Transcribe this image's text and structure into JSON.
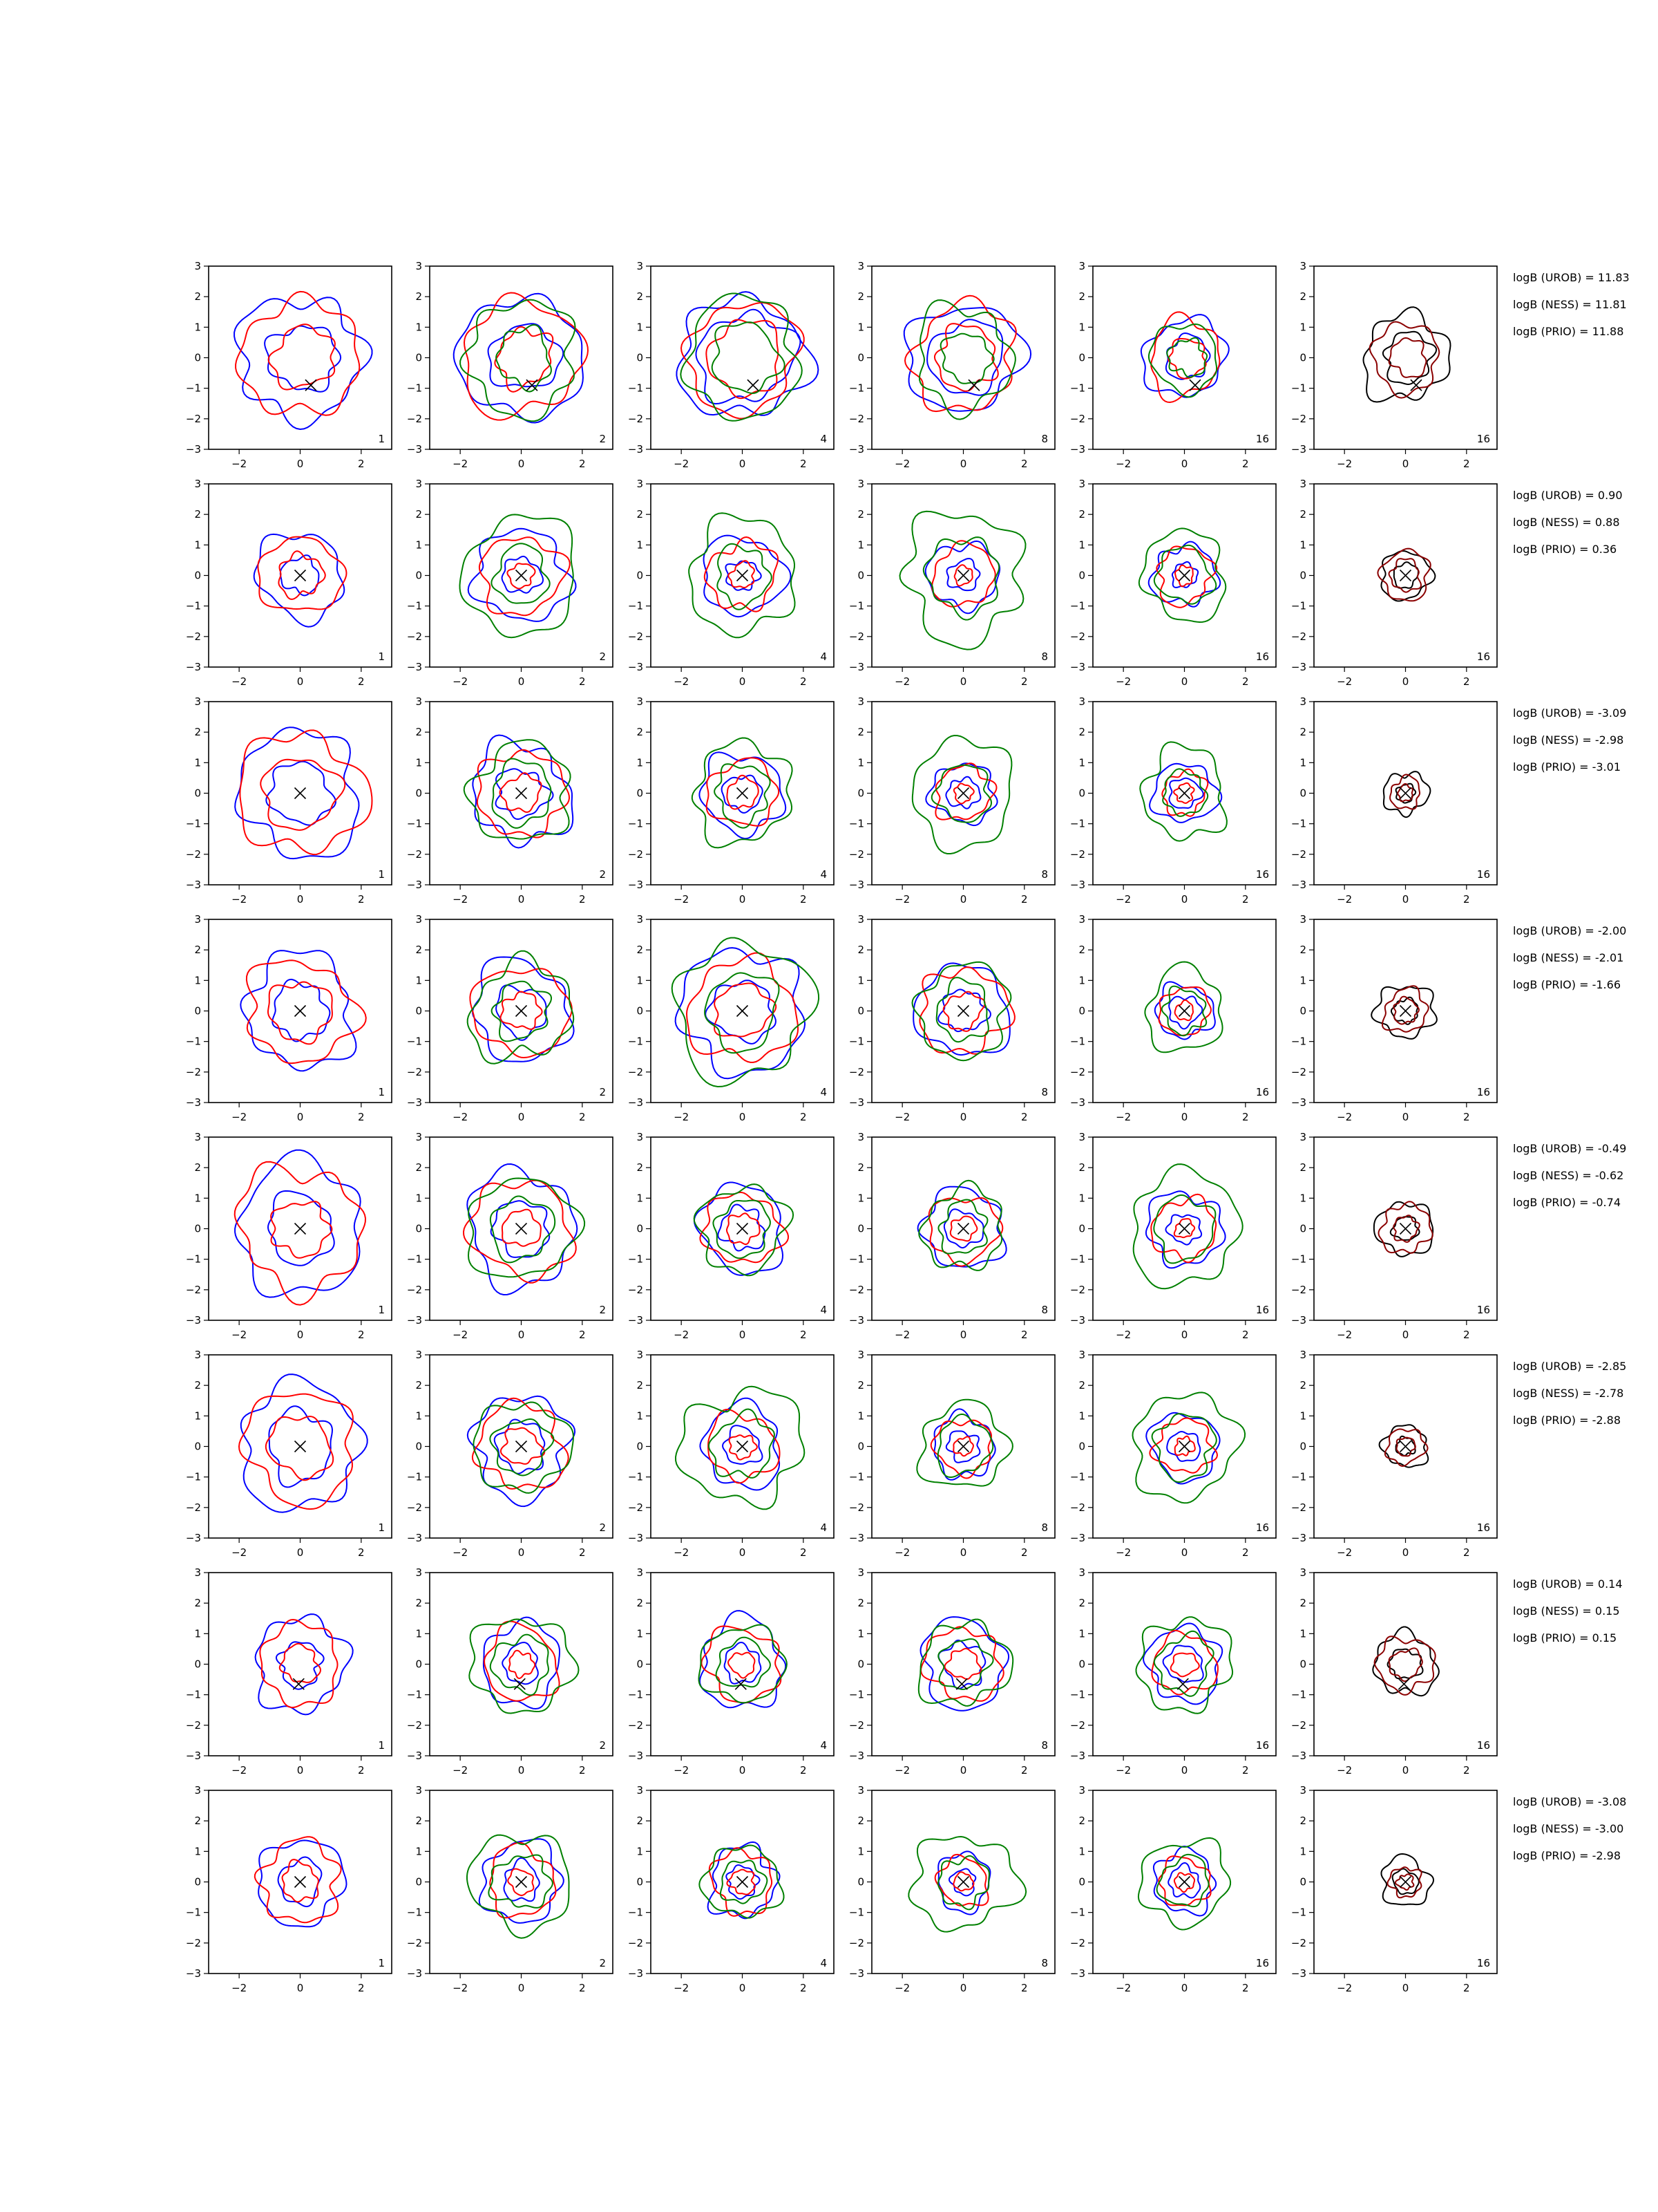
{
  "chart_data": {
    "type": "contour-grid",
    "rows": 8,
    "cols": 6,
    "xlim": [
      -3,
      3
    ],
    "ylim": [
      -3,
      3
    ],
    "xticks": [
      "−2",
      "0",
      "2"
    ],
    "yticks": [
      "3",
      "2",
      "1",
      "0",
      "−1",
      "−2",
      "−3"
    ],
    "tick_values_x": [
      -2,
      0,
      2
    ],
    "tick_values_y": [
      3,
      2,
      1,
      0,
      -1,
      -2,
      -3
    ],
    "column_labels": [
      "1",
      "2",
      "4",
      "8",
      "16",
      "16"
    ],
    "colors": {
      "blue": "#0000ff",
      "red": "#ff0000",
      "green": "#008000",
      "black": "#000000",
      "darkred": "#8b0000"
    },
    "marker_positions": [
      [
        0.35,
        -0.9
      ],
      [
        0,
        0
      ],
      [
        0,
        0
      ],
      [
        0,
        0
      ],
      [
        0,
        0
      ],
      [
        0,
        0
      ],
      [
        -0.05,
        -0.65
      ],
      [
        0,
        0
      ]
    ],
    "contour_radii": [
      [
        {
          "blue": [
            2.0,
            1.1
          ],
          "red": [
            1.9,
            1.0
          ]
        },
        {
          "blue": [
            2.0,
            1.1
          ],
          "red": [
            1.9,
            0.9
          ],
          "green": [
            1.8,
            0.9
          ]
        },
        {
          "blue": [
            2.0,
            1.5
          ],
          "red": [
            1.8,
            1.2
          ],
          "green": [
            1.9,
            1.1
          ]
        },
        {
          "blue": [
            1.8,
            1.2
          ],
          "red": [
            1.7,
            1.0
          ],
          "green": [
            1.6,
            0.8
          ]
        },
        {
          "blue": [
            1.3,
            0.7
          ],
          "red": [
            1.2,
            0.6
          ],
          "green": [
            1.1,
            0.6
          ]
        },
        {
          "black": [
            1.4,
            0.8
          ],
          "darkred": [
            1.1,
            0.6
          ]
        }
      ],
      [
        {
          "blue": [
            1.4,
            0.6
          ],
          "red": [
            1.3,
            0.7
          ]
        },
        {
          "blue": [
            1.5,
            0.6
          ],
          "red": [
            1.3,
            0.4
          ],
          "green": [
            1.9,
            0.9
          ]
        },
        {
          "blue": [
            1.3,
            0.5
          ],
          "red": [
            1.1,
            0.4
          ],
          "green": [
            1.8,
            0.9
          ]
        },
        {
          "blue": [
            1.1,
            0.5
          ],
          "red": [
            1.0,
            0.3
          ],
          "green": [
            2.0,
            1.2
          ]
        },
        {
          "blue": [
            1.0,
            0.4
          ],
          "red": [
            0.9,
            0.3
          ],
          "green": [
            1.4,
            0.9
          ]
        },
        {
          "black": [
            0.8,
            0.4
          ],
          "darkred": [
            0.8,
            0.5
          ]
        }
      ],
      [
        {
          "blue": [
            2.0,
            1.0
          ],
          "red": [
            2.0,
            1.2
          ]
        },
        {
          "blue": [
            1.6,
            0.8
          ],
          "red": [
            1.4,
            0.6
          ],
          "green": [
            1.6,
            1.0
          ]
        },
        {
          "blue": [
            1.3,
            0.6
          ],
          "red": [
            1.1,
            0.5
          ],
          "green": [
            1.6,
            0.9
          ]
        },
        {
          "blue": [
            1.0,
            0.5
          ],
          "red": [
            0.9,
            0.3
          ],
          "green": [
            1.7,
            0.9
          ]
        },
        {
          "blue": [
            1.0,
            0.5
          ],
          "red": [
            0.7,
            0.3
          ],
          "green": [
            1.4,
            0.7
          ]
        },
        {
          "black": [
            0.7,
            0.3
          ],
          "darkred": [
            0.5,
            0.25
          ]
        }
      ],
      [
        {
          "blue": [
            1.8,
            0.9
          ],
          "red": [
            1.7,
            1.0
          ]
        },
        {
          "blue": [
            1.6,
            0.8
          ],
          "red": [
            1.5,
            0.6
          ],
          "green": [
            1.6,
            0.9
          ]
        },
        {
          "blue": [
            2.0,
            1.0
          ],
          "red": [
            1.7,
            0.9
          ],
          "green": [
            2.2,
            1.2
          ]
        },
        {
          "blue": [
            1.5,
            0.7
          ],
          "red": [
            1.4,
            0.6
          ],
          "green": [
            1.5,
            0.9
          ]
        },
        {
          "blue": [
            0.9,
            0.5
          ],
          "red": [
            0.8,
            0.3
          ],
          "green": [
            1.3,
            0.7
          ]
        },
        {
          "black": [
            0.9,
            0.4
          ],
          "darkred": [
            0.7,
            0.4
          ]
        }
      ],
      [
        {
          "blue": [
            2.1,
            1.1
          ],
          "red": [
            2.0,
            0.9
          ]
        },
        {
          "blue": [
            1.8,
            0.9
          ],
          "red": [
            1.6,
            0.6
          ],
          "green": [
            1.7,
            1.0
          ]
        },
        {
          "blue": [
            1.4,
            0.7
          ],
          "red": [
            1.2,
            0.5
          ],
          "green": [
            1.4,
            0.9
          ]
        },
        {
          "blue": [
            1.3,
            0.6
          ],
          "red": [
            1.1,
            0.4
          ],
          "green": [
            1.3,
            0.8
          ]
        },
        {
          "blue": [
            1.2,
            0.5
          ],
          "red": [
            1.0,
            0.3
          ],
          "green": [
            1.8,
            1.0
          ]
        },
        {
          "black": [
            0.9,
            0.4
          ],
          "darkred": [
            0.8,
            0.4
          ]
        }
      ],
      [
        {
          "blue": [
            2.0,
            1.1
          ],
          "red": [
            1.8,
            1.0
          ]
        },
        {
          "blue": [
            1.6,
            0.8
          ],
          "red": [
            1.4,
            0.6
          ],
          "green": [
            1.5,
            0.9
          ]
        },
        {
          "blue": [
            1.3,
            0.6
          ],
          "red": [
            1.1,
            0.4
          ],
          "green": [
            1.9,
            1.0
          ]
        },
        {
          "blue": [
            1.0,
            0.5
          ],
          "red": [
            0.9,
            0.3
          ],
          "green": [
            1.4,
            0.9
          ]
        },
        {
          "blue": [
            1.1,
            0.5
          ],
          "red": [
            0.9,
            0.3
          ],
          "green": [
            1.7,
            1.0
          ]
        },
        {
          "black": [
            0.7,
            0.3
          ],
          "darkred": [
            0.6,
            0.3
          ]
        }
      ],
      [
        {
          "blue": [
            1.5,
            0.7
          ],
          "red": [
            1.3,
            0.6
          ]
        },
        {
          "blue": [
            1.3,
            0.6
          ],
          "red": [
            1.2,
            0.4
          ],
          "green": [
            1.6,
            0.9
          ]
        },
        {
          "blue": [
            1.4,
            0.6
          ],
          "red": [
            1.2,
            0.4
          ],
          "green": [
            1.3,
            0.8
          ]
        },
        {
          "blue": [
            1.4,
            0.7
          ],
          "red": [
            1.2,
            0.5
          ],
          "green": [
            1.4,
            0.8
          ]
        },
        {
          "blue": [
            1.2,
            0.6
          ],
          "red": [
            1.0,
            0.4
          ],
          "green": [
            1.5,
            0.9
          ]
        },
        {
          "black": [
            1.0,
            0.5
          ],
          "darkred": [
            0.9,
            0.5
          ]
        }
      ],
      [
        {
          "blue": [
            1.4,
            0.7
          ],
          "red": [
            1.3,
            0.6
          ]
        },
        {
          "blue": [
            1.3,
            0.6
          ],
          "red": [
            1.1,
            0.4
          ],
          "green": [
            1.6,
            0.9
          ]
        },
        {
          "blue": [
            1.1,
            0.5
          ],
          "red": [
            1.0,
            0.4
          ],
          "green": [
            1.2,
            0.7
          ]
        },
        {
          "blue": [
            0.9,
            0.4
          ],
          "red": [
            0.8,
            0.3
          ],
          "green": [
            1.6,
            0.8
          ]
        },
        {
          "blue": [
            1.0,
            0.5
          ],
          "red": [
            0.8,
            0.3
          ],
          "green": [
            1.4,
            0.8
          ]
        },
        {
          "black": [
            0.8,
            0.4
          ],
          "darkred": [
            0.5,
            0.25
          ]
        }
      ]
    ],
    "row_stats": [
      [
        "logB (UROB) = 11.83",
        "logB (NESS) = 11.81",
        "logB (PRIO) = 11.88"
      ],
      [
        "logB (UROB) = 0.90",
        "logB (NESS) = 0.88",
        "logB (PRIO) = 0.36"
      ],
      [
        "logB (UROB) = -3.09",
        "logB (NESS) = -2.98",
        "logB (PRIO) = -3.01"
      ],
      [
        "logB (UROB) = -2.00",
        "logB (NESS) = -2.01",
        "logB (PRIO) = -1.66"
      ],
      [
        "logB (UROB) = -0.49",
        "logB (NESS) = -0.62",
        "logB (PRIO) = -0.74"
      ],
      [
        "logB (UROB) = -2.85",
        "logB (NESS) = -2.78",
        "logB (PRIO) = -2.88"
      ],
      [
        "logB (UROB) = 0.14",
        "logB (NESS) = 0.15",
        "logB (PRIO) = 0.15"
      ],
      [
        "logB (UROB) = -3.08",
        "logB (NESS) = -3.00",
        "logB (PRIO) = -2.98"
      ]
    ]
  }
}
